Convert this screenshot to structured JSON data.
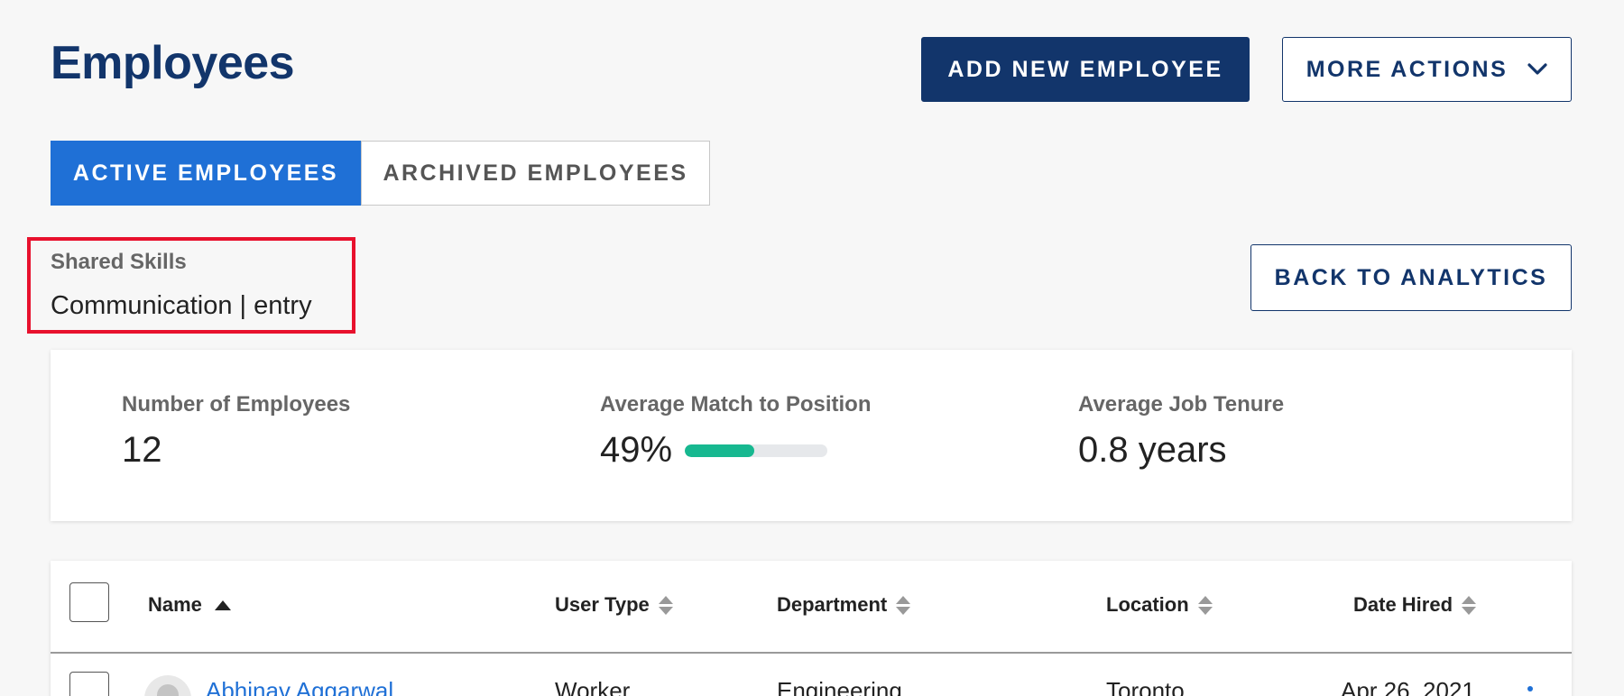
{
  "page": {
    "title": "Employees"
  },
  "actions": {
    "add_new_employee": "ADD NEW EMPLOYEE",
    "more_actions": "MORE ACTIONS",
    "back_to_analytics": "BACK TO ANALYTICS"
  },
  "tabs": [
    {
      "label": "ACTIVE EMPLOYEES",
      "active": true
    },
    {
      "label": "ARCHIVED EMPLOYEES",
      "active": false
    }
  ],
  "filter": {
    "label": "Shared Skills",
    "value": "Communication | entry"
  },
  "stats": [
    {
      "label": "Number of Employees",
      "value": "12"
    },
    {
      "label": "Average Match to Position",
      "value": "49%",
      "progress": 0.49
    },
    {
      "label": "Average Job Tenure",
      "value": "0.8 years"
    }
  ],
  "table": {
    "columns": [
      {
        "label": "Name",
        "sort": "asc"
      },
      {
        "label": "User Type",
        "sort": "none"
      },
      {
        "label": "Department",
        "sort": "none"
      },
      {
        "label": "Location",
        "sort": "none"
      },
      {
        "label": "Date Hired",
        "sort": "none"
      }
    ],
    "rows": [
      {
        "name": "Abhinav Aggarwal",
        "user_type": "Worker",
        "department": "Engineering",
        "location": "Toronto",
        "date_hired": "Apr 26, 2021"
      }
    ]
  },
  "colors": {
    "navy": "#12356b",
    "tab_active": "#1f70d6",
    "progress": "#17b890",
    "highlight_border": "#e8112d"
  },
  "icons": {
    "more_actions": "chevron-down-icon",
    "sort_asc": "sort-asc-icon",
    "sort_unsorted": "sort-icon",
    "avatar": "user-avatar-icon",
    "row_menu": "more-dots-icon"
  }
}
